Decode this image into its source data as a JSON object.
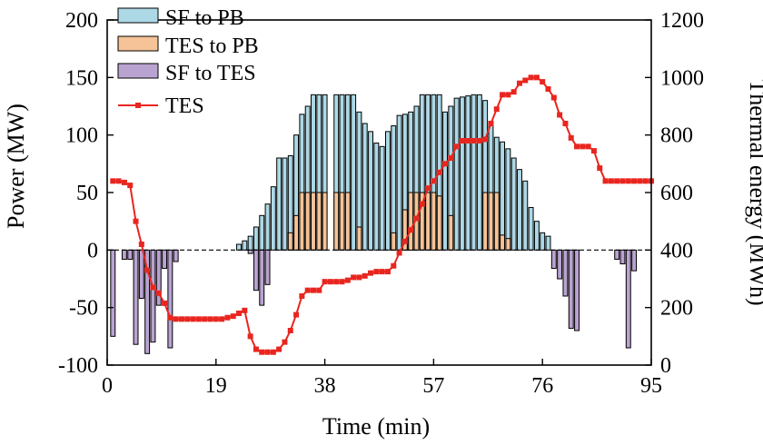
{
  "chart_data": {
    "type": "bar",
    "title": "",
    "xlabel": "Time (min)",
    "ylabel_left": "Power (MW)",
    "ylabel_right": "Thermal energy (MWh)",
    "xlim": [
      0,
      95
    ],
    "xticks": [
      0,
      19,
      38,
      57,
      76,
      95
    ],
    "ylim_left": [
      -100,
      200
    ],
    "yticks_left": [
      -100,
      -50,
      0,
      50,
      100,
      150,
      200
    ],
    "ylim_right": [
      0,
      1200
    ],
    "yticks_right": [
      0,
      200,
      400,
      600,
      800,
      1000,
      1200
    ],
    "grid": false,
    "legend_position": "top-left",
    "zero_line": "dashed",
    "colors": {
      "sf_to_pb": "#add8e6",
      "tes_to_pb": "#f5c397",
      "sf_to_tes": "#b9a3d1",
      "tes": "#e8261f"
    },
    "x": [
      0,
      1,
      2,
      3,
      4,
      5,
      6,
      7,
      8,
      9,
      10,
      11,
      12,
      13,
      14,
      15,
      16,
      17,
      18,
      19,
      20,
      21,
      22,
      23,
      24,
      25,
      26,
      27,
      28,
      29,
      30,
      31,
      32,
      33,
      34,
      35,
      36,
      37,
      38,
      39,
      40,
      41,
      42,
      43,
      44,
      45,
      46,
      47,
      48,
      49,
      50,
      51,
      52,
      53,
      54,
      55,
      56,
      57,
      58,
      59,
      60,
      61,
      62,
      63,
      64,
      65,
      66,
      67,
      68,
      69,
      70,
      71,
      72,
      73,
      74,
      75,
      76,
      77,
      78,
      79,
      80,
      81,
      82,
      83,
      84,
      85,
      86,
      87,
      88,
      89,
      90,
      91,
      92,
      93,
      94,
      95
    ],
    "series": [
      {
        "name": "SF to PB",
        "chart": "bar",
        "axis": "left",
        "values": [
          0,
          0,
          0,
          0,
          0,
          0,
          0,
          0,
          0,
          0,
          0,
          0,
          0,
          0,
          0,
          0,
          0,
          0,
          0,
          0,
          0,
          0,
          0,
          5,
          8,
          12,
          20,
          30,
          40,
          55,
          80,
          80,
          82,
          100,
          118,
          125,
          135,
          135,
          135,
          0,
          135,
          135,
          135,
          135,
          120,
          110,
          103,
          93,
          90,
          103,
          108,
          117,
          118,
          120,
          125,
          135,
          135,
          135,
          135,
          120,
          125,
          132,
          133,
          134,
          135,
          135,
          130,
          112,
          98,
          94,
          88,
          80,
          70,
          60,
          37,
          25,
          15,
          12,
          0,
          0,
          0,
          0,
          0,
          0,
          0,
          0,
          0,
          0,
          0,
          0,
          0,
          0,
          0,
          0,
          0,
          0
        ]
      },
      {
        "name": "TES to PB",
        "chart": "bar",
        "axis": "left",
        "values": [
          0,
          0,
          0,
          0,
          0,
          0,
          0,
          0,
          0,
          0,
          0,
          0,
          0,
          0,
          0,
          0,
          0,
          0,
          0,
          0,
          0,
          0,
          0,
          0,
          0,
          0,
          0,
          0,
          0,
          0,
          0,
          0,
          15,
          30,
          50,
          50,
          50,
          50,
          50,
          0,
          50,
          50,
          50,
          0,
          20,
          0,
          0,
          0,
          0,
          0,
          15,
          0,
          35,
          50,
          50,
          50,
          50,
          50,
          47,
          0,
          30,
          0,
          0,
          0,
          0,
          0,
          50,
          50,
          50,
          13,
          10,
          0,
          0,
          0,
          0,
          0,
          0,
          0,
          0,
          0,
          0,
          0,
          0,
          0,
          0,
          0,
          0,
          0,
          0,
          0,
          0,
          0,
          0,
          0,
          0,
          0
        ]
      },
      {
        "name": "SF to TES",
        "chart": "bar",
        "axis": "left",
        "values": [
          0,
          -75,
          0,
          -8,
          -8,
          -82,
          -42,
          -90,
          -80,
          -48,
          -16,
          -85,
          -10,
          0,
          0,
          0,
          0,
          0,
          0,
          0,
          0,
          0,
          0,
          0,
          0,
          -3,
          -35,
          -48,
          -30,
          0,
          0,
          0,
          0,
          0,
          0,
          0,
          0,
          0,
          0,
          0,
          0,
          0,
          0,
          0,
          0,
          0,
          0,
          0,
          0,
          0,
          0,
          0,
          0,
          0,
          0,
          0,
          0,
          0,
          0,
          0,
          0,
          0,
          0,
          0,
          0,
          0,
          0,
          0,
          0,
          0,
          0,
          0,
          0,
          0,
          0,
          0,
          0,
          0,
          -16,
          -25,
          -40,
          -68,
          -70,
          0,
          0,
          0,
          0,
          0,
          0,
          -8,
          -12,
          -85,
          -18,
          0,
          0,
          0
        ]
      },
      {
        "name": "TES",
        "chart": "line",
        "axis": "right",
        "marker": "square",
        "values": [
          null,
          640,
          640,
          635,
          625,
          500,
          420,
          330,
          270,
          250,
          215,
          165,
          160,
          160,
          160,
          160,
          160,
          160,
          160,
          160,
          160,
          165,
          170,
          180,
          190,
          100,
          55,
          45,
          45,
          45,
          55,
          80,
          120,
          175,
          240,
          260,
          260,
          260,
          290,
          290,
          290,
          290,
          295,
          305,
          305,
          310,
          320,
          325,
          325,
          325,
          345,
          390,
          430,
          470,
          510,
          560,
          615,
          640,
          670,
          700,
          720,
          760,
          780,
          780,
          780,
          780,
          785,
          840,
          890,
          940,
          940,
          950,
          980,
          990,
          1000,
          1000,
          985,
          960,
          930,
          870,
          840,
          790,
          760,
          760,
          760,
          745,
          685,
          640,
          640,
          640,
          640,
          640,
          640,
          640,
          640,
          640
        ]
      }
    ]
  }
}
